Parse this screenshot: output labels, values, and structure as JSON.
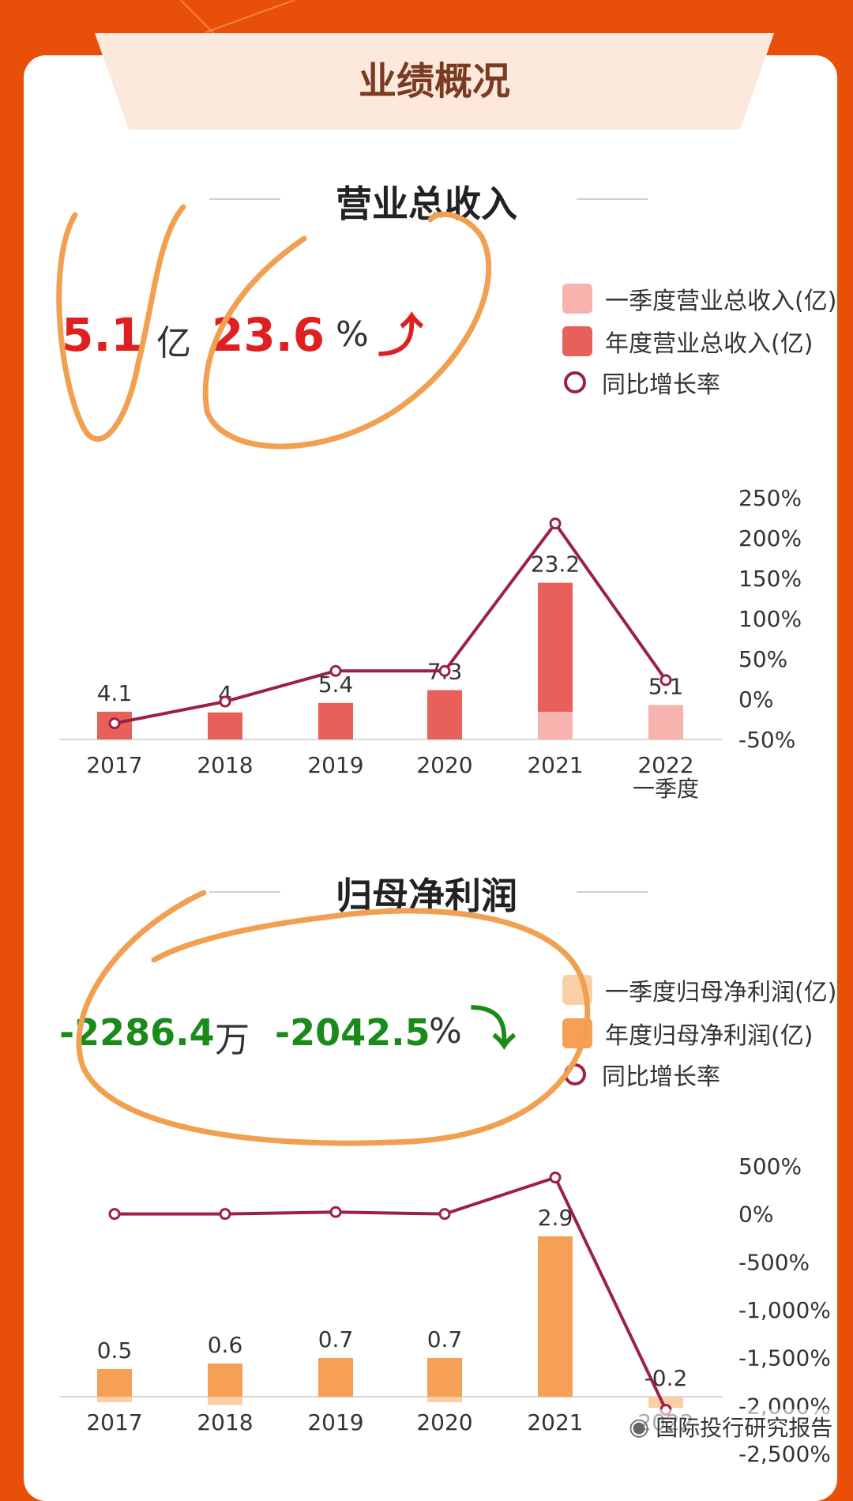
{
  "header": {
    "title": "业绩概况"
  },
  "revenue": {
    "title": "营业总收入",
    "kpi_value": "5.1",
    "kpi_unit": "亿",
    "kpi_change": "23.6",
    "kpi_change_unit": "%",
    "kpi_arrow": "⤴",
    "legend": [
      "一季度营业总收入(亿)",
      "年度营业总收入(亿)",
      "同比增长率"
    ]
  },
  "profit": {
    "title": "归母净利润",
    "kpi_value": "-2286.4",
    "kpi_unit": "万",
    "kpi_change": "-2042.5",
    "kpi_change_unit": "%",
    "kpi_arrow": "⤵",
    "legend": [
      "一季度归母净利润(亿)",
      "年度归母净利润(亿)",
      "同比增长率"
    ]
  },
  "watermark": {
    "text": "国际投行研究报告",
    "icon": "wechat-icon"
  },
  "colors": {
    "revenue_annual": "#e8605a",
    "revenue_q1": "#f7b3ae",
    "profit_annual": "#f5a054",
    "profit_q1": "#f9cfa6",
    "growth_line": "#9b2146",
    "kpi_red": "#e02020",
    "kpi_green": "#1a8a1a",
    "annotation": "#f0a050"
  },
  "chart_data": [
    {
      "type": "bar",
      "categories": [
        "2017",
        "2018",
        "2019",
        "2020",
        "2021",
        "2022\n一季度"
      ],
      "series": [
        {
          "name": "年度营业总收入(亿)",
          "values": [
            4.1,
            4,
            5.4,
            7.3,
            23.2,
            null
          ]
        },
        {
          "name": "一季度营业总收入(亿)",
          "values": [
            null,
            null,
            null,
            null,
            4.1,
            5.1
          ]
        },
        {
          "name": "同比增长率",
          "type": "line",
          "values": [
            -30,
            -3,
            35,
            35,
            218,
            23.6
          ]
        }
      ],
      "data_labels": [
        "4.1",
        "4",
        "5.4",
        "7.3",
        "23.2",
        "5.1"
      ],
      "y2_ticks": [
        "250%",
        "200%",
        "150%",
        "100%",
        "50%",
        "0%",
        "-50%"
      ],
      "y2lim": [
        -50,
        250
      ]
    },
    {
      "type": "bar",
      "categories": [
        "2017",
        "2018",
        "2019",
        "2020",
        "2021",
        "2022"
      ],
      "series": [
        {
          "name": "年度归母净利润(亿)",
          "values": [
            0.5,
            0.6,
            0.7,
            0.7,
            2.9,
            null
          ]
        },
        {
          "name": "一季度归母净利润(亿)",
          "values": [
            -0.1,
            -0.15,
            null,
            -0.1,
            null,
            -0.2
          ]
        },
        {
          "name": "同比增长率",
          "type": "line",
          "values": [
            0,
            0,
            20,
            0,
            380,
            -2042.5
          ]
        }
      ],
      "data_labels": [
        "0.5",
        "0.6",
        "0.7",
        "0.7",
        "2.9",
        "-0.2"
      ],
      "y2_ticks": [
        "500%",
        "0%",
        "-500%",
        "-1,000%",
        "-1,500%",
        "-2,000%",
        "-2,500%"
      ],
      "y2lim": [
        -2500,
        500
      ]
    }
  ]
}
